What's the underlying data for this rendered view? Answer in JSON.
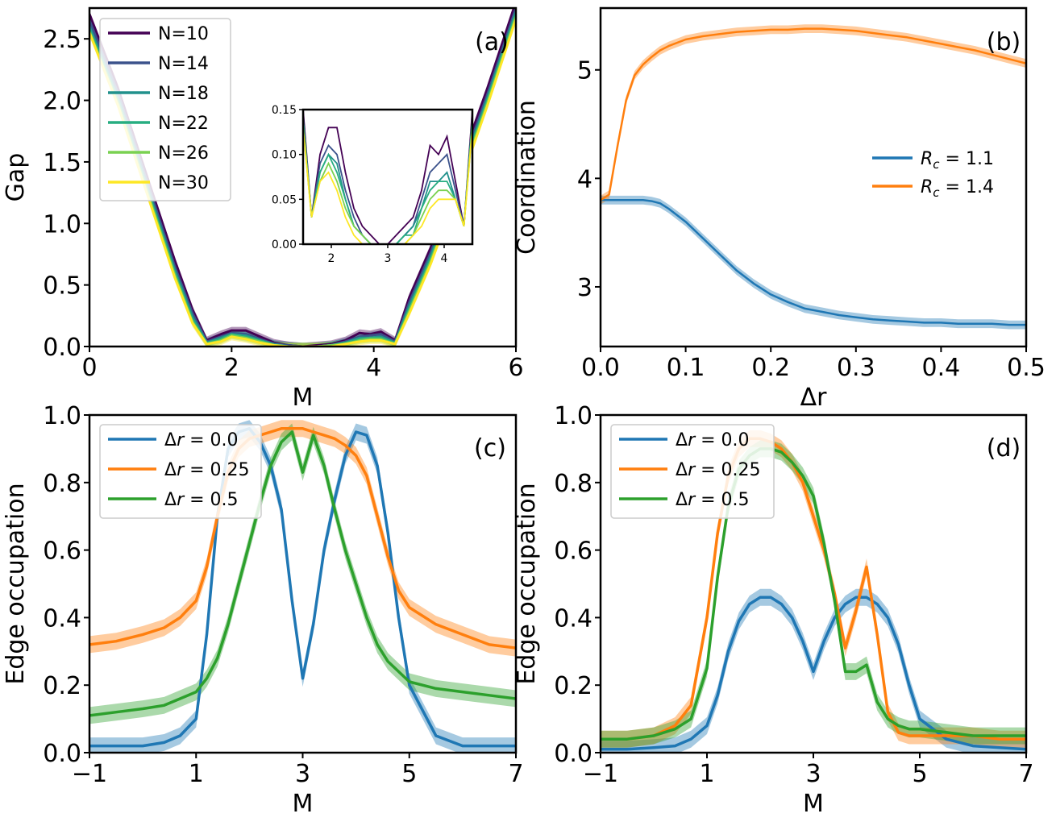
{
  "chart_data": [
    {
      "id": "a",
      "type": "line",
      "panel_label": "(a)",
      "xlabel": "M",
      "ylabel": "Gap",
      "xlim": [
        0,
        6
      ],
      "ylim": [
        0,
        2.75
      ],
      "xticks": [
        0,
        2,
        4,
        6
      ],
      "xtick_labels": [
        "0",
        "2",
        "4",
        "6"
      ],
      "yticks": [
        0,
        0.5,
        1.0,
        1.5,
        2.0,
        2.5
      ],
      "ytick_labels": [
        "0.0",
        "0.5",
        "1.0",
        "1.5",
        "2.0",
        "2.5"
      ],
      "legend_position": "top-left",
      "x": [
        0,
        0.4,
        0.8,
        1.2,
        1.45,
        1.65,
        1.85,
        2.0,
        2.2,
        2.4,
        2.6,
        2.8,
        3.0,
        3.2,
        3.4,
        3.6,
        3.8,
        3.95,
        4.1,
        4.3,
        4.5,
        4.8,
        5.2,
        5.6,
        6.0
      ],
      "series": [
        {
          "name": "N=10",
          "color": "#440154",
          "values": [
            2.7,
            2.1,
            1.4,
            0.7,
            0.3,
            0.05,
            0.1,
            0.13,
            0.13,
            0.08,
            0.03,
            0.01,
            0.0,
            0.01,
            0.02,
            0.05,
            0.11,
            0.1,
            0.12,
            0.05,
            0.4,
            0.8,
            1.45,
            2.1,
            2.8
          ]
        },
        {
          "name": "N=14",
          "color": "#3b528b",
          "values": [
            2.65,
            2.06,
            1.36,
            0.65,
            0.27,
            0.04,
            0.08,
            0.11,
            0.1,
            0.06,
            0.02,
            0.01,
            0.0,
            0.0,
            0.01,
            0.04,
            0.08,
            0.09,
            0.1,
            0.04,
            0.36,
            0.76,
            1.4,
            2.05,
            2.75
          ]
        },
        {
          "name": "N=18",
          "color": "#21918c",
          "values": [
            2.6,
            2.02,
            1.32,
            0.62,
            0.24,
            0.03,
            0.07,
            0.1,
            0.09,
            0.05,
            0.02,
            0.0,
            0.0,
            0.0,
            0.01,
            0.03,
            0.07,
            0.07,
            0.08,
            0.03,
            0.33,
            0.73,
            1.36,
            2.02,
            2.72
          ]
        },
        {
          "name": "N=22",
          "color": "#27ad81",
          "values": [
            2.58,
            2.0,
            1.3,
            0.6,
            0.22,
            0.03,
            0.06,
            0.1,
            0.08,
            0.05,
            0.01,
            0.0,
            0.0,
            0.0,
            0.01,
            0.03,
            0.06,
            0.07,
            0.07,
            0.03,
            0.31,
            0.71,
            1.34,
            2.0,
            2.7
          ]
        },
        {
          "name": "N=26",
          "color": "#7ad151",
          "values": [
            2.56,
            1.98,
            1.28,
            0.58,
            0.2,
            0.02,
            0.05,
            0.09,
            0.07,
            0.04,
            0.01,
            0.0,
            0.0,
            0.0,
            0.01,
            0.02,
            0.05,
            0.06,
            0.06,
            0.02,
            0.29,
            0.69,
            1.32,
            1.98,
            2.68
          ]
        },
        {
          "name": "N=30",
          "color": "#fde725",
          "values": [
            2.55,
            1.96,
            1.26,
            0.56,
            0.19,
            0.02,
            0.04,
            0.08,
            0.06,
            0.03,
            0.01,
            0.0,
            0.0,
            0.0,
            0.0,
            0.02,
            0.04,
            0.05,
            0.05,
            0.02,
            0.27,
            0.67,
            1.3,
            1.96,
            2.66
          ]
        }
      ],
      "inset": {
        "xlim": [
          1.5,
          4.5
        ],
        "ylim": [
          0,
          0.15
        ],
        "xticks": [
          2,
          3,
          4
        ],
        "xtick_labels": [
          "2",
          "3",
          "4"
        ],
        "yticks": [
          0,
          0.05,
          0.1,
          0.15
        ],
        "ytick_labels": [
          "0.00",
          "0.05",
          "0.10",
          "0.15"
        ],
        "x": [
          1.5,
          1.65,
          1.8,
          1.95,
          2.1,
          2.25,
          2.4,
          2.55,
          2.7,
          2.85,
          3.0,
          3.15,
          3.3,
          3.45,
          3.6,
          3.75,
          3.9,
          4.05,
          4.2,
          4.35,
          4.5
        ],
        "series": [
          {
            "name": "N=10",
            "color": "#440154",
            "values": [
              0.15,
              0.03,
              0.1,
              0.13,
              0.13,
              0.08,
              0.04,
              0.02,
              0.01,
              0.0,
              0.0,
              0.01,
              0.02,
              0.03,
              0.06,
              0.11,
              0.1,
              0.12,
              0.07,
              0.02,
              0.15
            ]
          },
          {
            "name": "N=14",
            "color": "#3b528b",
            "values": [
              0.14,
              0.03,
              0.09,
              0.11,
              0.1,
              0.06,
              0.03,
              0.01,
              0.0,
              0.0,
              0.0,
              0.0,
              0.01,
              0.02,
              0.05,
              0.08,
              0.09,
              0.1,
              0.06,
              0.02,
              0.14
            ]
          },
          {
            "name": "N=18",
            "color": "#21918c",
            "values": [
              0.14,
              0.03,
              0.08,
              0.1,
              0.09,
              0.05,
              0.02,
              0.01,
              0.0,
              0.0,
              0.0,
              0.0,
              0.01,
              0.02,
              0.04,
              0.07,
              0.07,
              0.08,
              0.05,
              0.02,
              0.14
            ]
          },
          {
            "name": "N=22",
            "color": "#27ad81",
            "values": [
              0.14,
              0.03,
              0.08,
              0.1,
              0.08,
              0.05,
              0.02,
              0.01,
              0.0,
              0.0,
              0.0,
              0.0,
              0.01,
              0.01,
              0.04,
              0.06,
              0.07,
              0.07,
              0.05,
              0.02,
              0.14
            ]
          },
          {
            "name": "N=26",
            "color": "#7ad151",
            "values": [
              0.13,
              0.03,
              0.07,
              0.09,
              0.07,
              0.04,
              0.02,
              0.01,
              0.0,
              0.0,
              0.0,
              0.0,
              0.0,
              0.01,
              0.03,
              0.05,
              0.06,
              0.06,
              0.05,
              0.02,
              0.13
            ]
          },
          {
            "name": "N=30",
            "color": "#fde725",
            "values": [
              0.13,
              0.03,
              0.07,
              0.08,
              0.06,
              0.03,
              0.01,
              0.0,
              0.0,
              0.0,
              0.0,
              0.0,
              0.0,
              0.01,
              0.02,
              0.04,
              0.05,
              0.05,
              0.05,
              0.02,
              0.13
            ]
          }
        ]
      }
    },
    {
      "id": "b",
      "type": "line",
      "panel_label": "(b)",
      "xlabel": "Δr",
      "ylabel": "Coordination",
      "xlim": [
        0,
        0.5
      ],
      "ylim": [
        2.45,
        5.57
      ],
      "xticks": [
        0,
        0.1,
        0.2,
        0.3,
        0.4,
        0.5
      ],
      "xtick_labels": [
        "0.0",
        "0.1",
        "0.2",
        "0.3",
        "0.4",
        "0.5"
      ],
      "yticks": [
        3,
        4,
        5
      ],
      "ytick_labels": [
        "3",
        "4",
        "5"
      ],
      "legend_position": "center-right",
      "x": [
        0,
        0.01,
        0.02,
        0.03,
        0.04,
        0.05,
        0.06,
        0.07,
        0.08,
        0.1,
        0.12,
        0.14,
        0.16,
        0.18,
        0.2,
        0.22,
        0.24,
        0.26,
        0.28,
        0.3,
        0.32,
        0.34,
        0.36,
        0.38,
        0.4,
        0.42,
        0.44,
        0.46,
        0.48,
        0.5
      ],
      "series": [
        {
          "name": "R_c = 1.1",
          "color": "#1f77b4",
          "values": [
            3.8,
            3.8,
            3.8,
            3.8,
            3.8,
            3.8,
            3.79,
            3.77,
            3.72,
            3.6,
            3.45,
            3.3,
            3.15,
            3.03,
            2.93,
            2.86,
            2.8,
            2.77,
            2.74,
            2.72,
            2.7,
            2.69,
            2.68,
            2.67,
            2.67,
            2.66,
            2.66,
            2.66,
            2.65,
            2.65
          ]
        },
        {
          "name": "R_c = 1.4",
          "color": "#ff7f0e",
          "values": [
            3.8,
            3.85,
            4.3,
            4.72,
            4.95,
            5.05,
            5.12,
            5.18,
            5.22,
            5.28,
            5.31,
            5.33,
            5.35,
            5.36,
            5.37,
            5.37,
            5.38,
            5.38,
            5.37,
            5.36,
            5.34,
            5.32,
            5.3,
            5.27,
            5.24,
            5.21,
            5.18,
            5.14,
            5.1,
            5.06
          ]
        }
      ]
    },
    {
      "id": "c",
      "type": "line",
      "panel_label": "(c)",
      "xlabel": "M",
      "ylabel": "Edge occupation",
      "xlim": [
        -1,
        7
      ],
      "ylim": [
        0,
        1.0
      ],
      "xticks": [
        -1,
        1,
        3,
        5,
        7
      ],
      "xtick_labels": [
        "−1",
        "1",
        "3",
        "5",
        "7"
      ],
      "yticks": [
        0,
        0.2,
        0.4,
        0.6,
        0.8,
        1.0
      ],
      "ytick_labels": [
        "0.0",
        "0.2",
        "0.4",
        "0.6",
        "0.8",
        "1.0"
      ],
      "legend_position": "top-left",
      "x": [
        -1,
        -0.5,
        0,
        0.4,
        0.7,
        1.0,
        1.2,
        1.4,
        1.6,
        1.8,
        2.0,
        2.2,
        2.4,
        2.6,
        2.8,
        3.0,
        3.2,
        3.4,
        3.6,
        3.8,
        4.0,
        4.2,
        4.4,
        4.6,
        4.8,
        5.0,
        5.5,
        6.0,
        6.5,
        7.0
      ],
      "series": [
        {
          "name": "Δr = 0.0",
          "color": "#1f77b4",
          "values": [
            0.02,
            0.02,
            0.02,
            0.03,
            0.05,
            0.1,
            0.35,
            0.7,
            0.9,
            0.95,
            0.96,
            0.92,
            0.85,
            0.72,
            0.45,
            0.22,
            0.38,
            0.6,
            0.75,
            0.88,
            0.95,
            0.94,
            0.85,
            0.65,
            0.4,
            0.2,
            0.05,
            0.02,
            0.02,
            0.02
          ]
        },
        {
          "name": "Δr = 0.25",
          "color": "#ff7f0e",
          "values": [
            0.32,
            0.33,
            0.35,
            0.37,
            0.4,
            0.45,
            0.55,
            0.7,
            0.83,
            0.9,
            0.93,
            0.94,
            0.95,
            0.96,
            0.96,
            0.96,
            0.95,
            0.94,
            0.93,
            0.91,
            0.88,
            0.82,
            0.7,
            0.58,
            0.48,
            0.43,
            0.38,
            0.35,
            0.32,
            0.31
          ]
        },
        {
          "name": "Δr = 0.5",
          "color": "#2ca02c",
          "values": [
            0.11,
            0.12,
            0.13,
            0.14,
            0.16,
            0.18,
            0.22,
            0.28,
            0.38,
            0.5,
            0.62,
            0.74,
            0.85,
            0.92,
            0.95,
            0.83,
            0.94,
            0.85,
            0.72,
            0.6,
            0.5,
            0.4,
            0.32,
            0.27,
            0.24,
            0.21,
            0.19,
            0.18,
            0.17,
            0.16
          ]
        }
      ]
    },
    {
      "id": "d",
      "type": "line",
      "panel_label": "(d)",
      "xlabel": "M",
      "ylabel": "Edge occupation",
      "xlim": [
        -1,
        7
      ],
      "ylim": [
        0,
        1.0
      ],
      "xticks": [
        -1,
        1,
        3,
        5,
        7
      ],
      "xtick_labels": [
        "−1",
        "1",
        "3",
        "5",
        "7"
      ],
      "yticks": [
        0,
        0.2,
        0.4,
        0.6,
        0.8,
        1.0
      ],
      "ytick_labels": [
        "0.0",
        "0.2",
        "0.4",
        "0.6",
        "0.8",
        "1.0"
      ],
      "legend_position": "top-left",
      "x": [
        -1,
        -0.5,
        0,
        0.4,
        0.7,
        1.0,
        1.2,
        1.4,
        1.6,
        1.8,
        2.0,
        2.2,
        2.4,
        2.6,
        2.8,
        3.0,
        3.2,
        3.4,
        3.6,
        3.8,
        4.0,
        4.2,
        4.4,
        4.6,
        4.8,
        5.0,
        5.5,
        6.0,
        6.5,
        7.0
      ],
      "series": [
        {
          "name": "Δr = 0.0",
          "color": "#1f77b4",
          "values": [
            0.01,
            0.01,
            0.015,
            0.02,
            0.04,
            0.08,
            0.17,
            0.3,
            0.39,
            0.44,
            0.46,
            0.46,
            0.44,
            0.4,
            0.33,
            0.24,
            0.33,
            0.4,
            0.44,
            0.46,
            0.46,
            0.44,
            0.4,
            0.32,
            0.2,
            0.1,
            0.04,
            0.02,
            0.015,
            0.01
          ]
        },
        {
          "name": "Δr = 0.25",
          "color": "#ff7f0e",
          "values": [
            0.04,
            0.04,
            0.05,
            0.08,
            0.14,
            0.4,
            0.65,
            0.82,
            0.9,
            0.93,
            0.93,
            0.92,
            0.9,
            0.86,
            0.8,
            0.7,
            0.6,
            0.47,
            0.31,
            0.42,
            0.55,
            0.35,
            0.12,
            0.06,
            0.05,
            0.05,
            0.05,
            0.05,
            0.04,
            0.04
          ]
        },
        {
          "name": "Δr = 0.5",
          "color": "#2ca02c",
          "values": [
            0.04,
            0.04,
            0.05,
            0.07,
            0.1,
            0.25,
            0.52,
            0.73,
            0.84,
            0.88,
            0.9,
            0.9,
            0.89,
            0.86,
            0.82,
            0.76,
            0.62,
            0.45,
            0.24,
            0.24,
            0.26,
            0.15,
            0.1,
            0.08,
            0.07,
            0.07,
            0.06,
            0.05,
            0.05,
            0.05
          ]
        }
      ]
    }
  ]
}
